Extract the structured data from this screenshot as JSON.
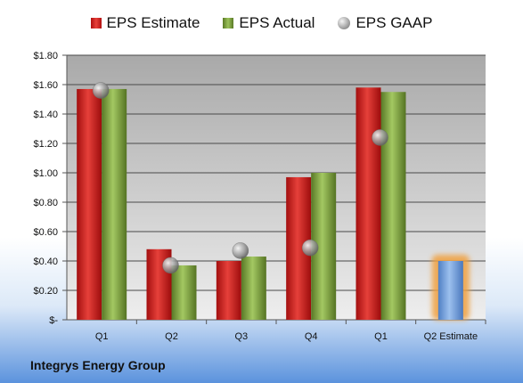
{
  "chart_data": {
    "type": "bar",
    "categories": [
      "Q1",
      "Q2",
      "Q3",
      "Q4",
      "Q1",
      "Q2 Estimate"
    ],
    "series": [
      {
        "name": "EPS Estimate",
        "values": [
          1.57,
          0.48,
          0.4,
          0.97,
          1.58,
          null
        ],
        "color": "#c4201c"
      },
      {
        "name": "EPS Actual",
        "values": [
          1.57,
          0.37,
          0.43,
          1.0,
          1.55,
          null
        ],
        "color": "#7da33c"
      },
      {
        "name": "EPS GAAP",
        "values": [
          1.56,
          0.37,
          0.47,
          0.49,
          1.24,
          null
        ],
        "color": "#9a9a9a"
      }
    ],
    "forecast": {
      "category": "Q2 Estimate",
      "value": 0.4,
      "color": "#6f9fdd",
      "highlight": "#f0a040"
    },
    "y_ticks": [
      "$-",
      "$0.20",
      "$0.40",
      "$0.60",
      "$0.80",
      "$1.00",
      "$1.20",
      "$1.40",
      "$1.60",
      "$1.80"
    ],
    "ylim": [
      0,
      1.8
    ],
    "grid": true,
    "legend": "top"
  },
  "legend": {
    "estimate": "EPS Estimate",
    "actual": "EPS Actual",
    "gaap": "EPS GAAP"
  },
  "company": "Integrys Energy Group"
}
